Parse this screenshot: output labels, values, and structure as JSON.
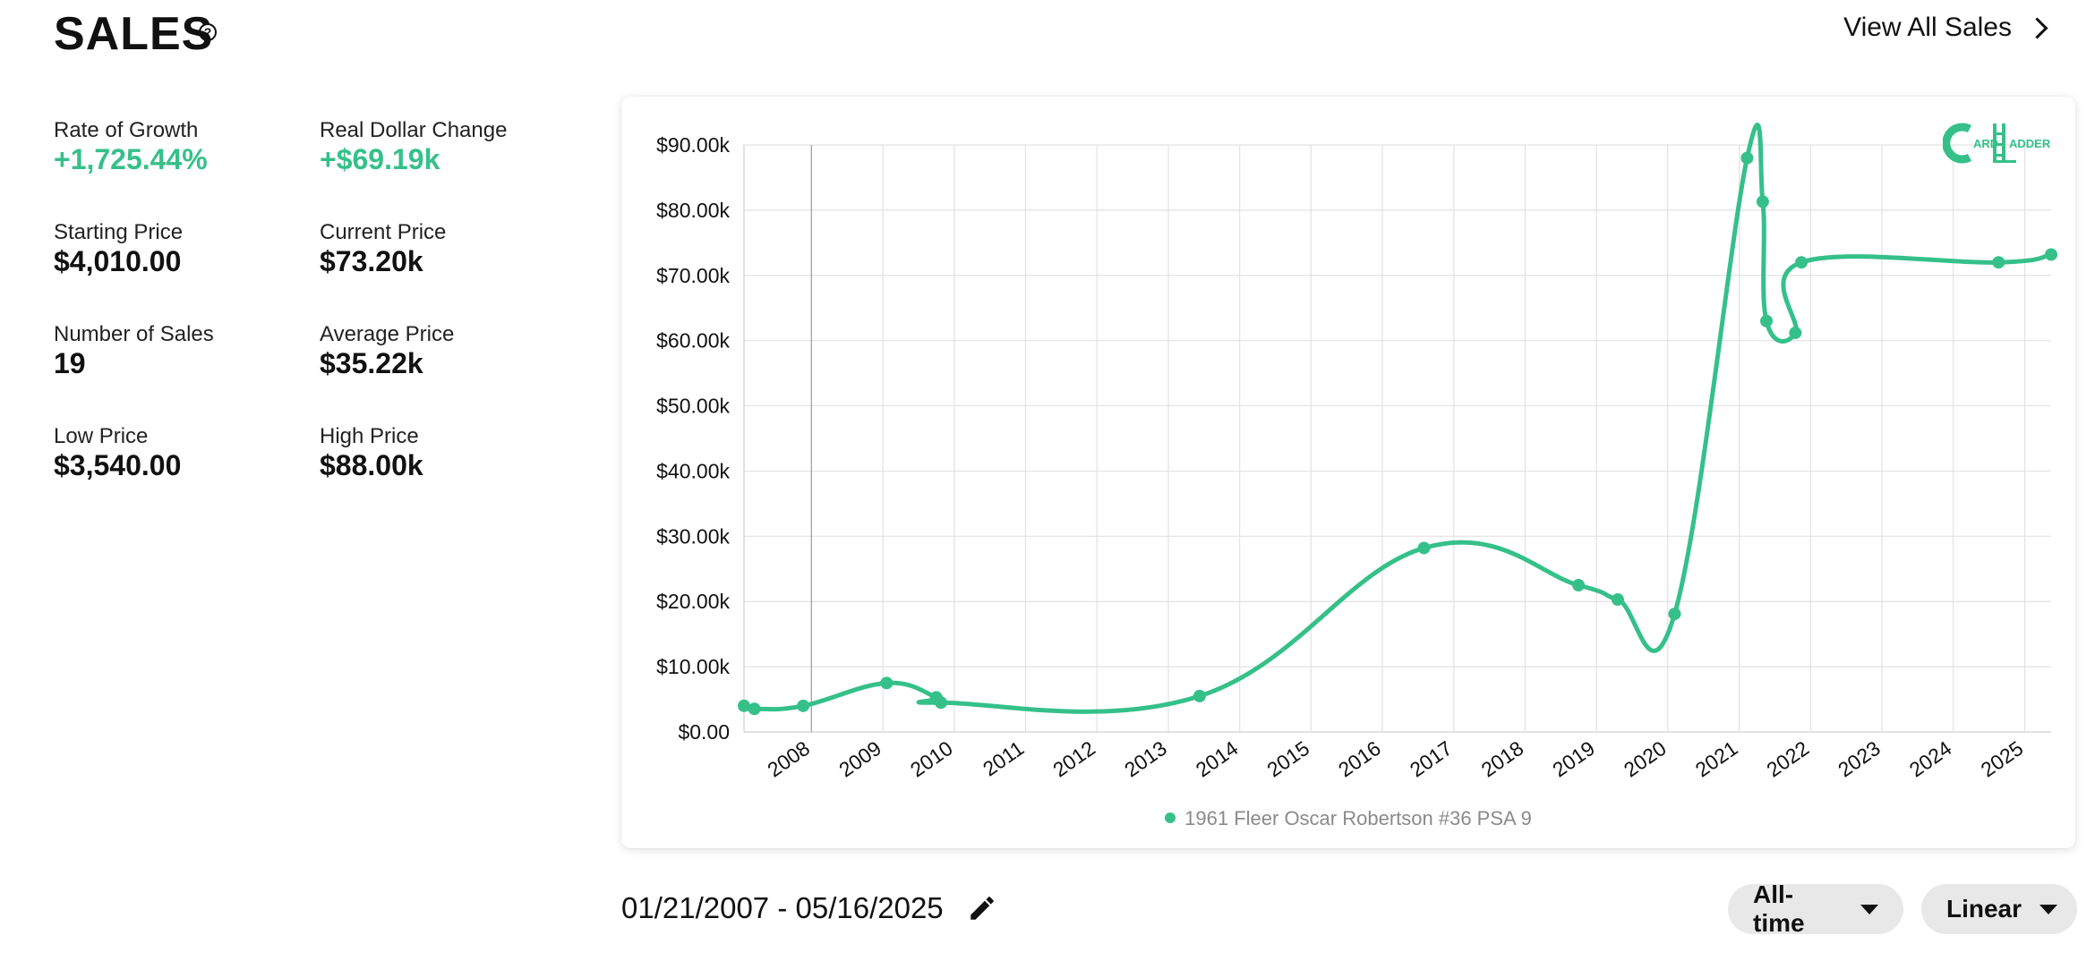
{
  "header": {
    "title": "SALES",
    "help_icon": "question-circle-icon",
    "view_all_label": "View All Sales"
  },
  "stats": [
    {
      "label": "Rate of Growth",
      "value": "+1,725.44%",
      "positive": true
    },
    {
      "label": "Real Dollar Change",
      "value": "+$69.19k",
      "positive": true
    },
    {
      "label": "Starting Price",
      "value": "$4,010.00",
      "positive": false
    },
    {
      "label": "Current Price",
      "value": "$73.20k",
      "positive": false
    },
    {
      "label": "Number of Sales",
      "value": "19",
      "positive": false
    },
    {
      "label": "Average Price",
      "value": "$35.22k",
      "positive": false
    },
    {
      "label": "Low Price",
      "value": "$3,540.00",
      "positive": false
    },
    {
      "label": "High Price",
      "value": "$88.00k",
      "positive": false
    }
  ],
  "logo": {
    "text_c": "C",
    "text_ard": "ARD",
    "text_ladder": "ADDER",
    "icon": "card-ladder-logo-icon"
  },
  "colors": {
    "accent": "#35c08a",
    "grid": "#e2e2e2",
    "pill": "#e8e8e8"
  },
  "chart_data": {
    "type": "line",
    "title": "",
    "xlabel": "",
    "ylabel": "",
    "x_ticks": [
      "2008",
      "2009",
      "2010",
      "2011",
      "2012",
      "2013",
      "2014",
      "2015",
      "2016",
      "2017",
      "2018",
      "2019",
      "2020",
      "2021",
      "2022",
      "2023",
      "2024",
      "2025"
    ],
    "y_ticks": [
      "$0.00",
      "$10.00k",
      "$20.00k",
      "$30.00k",
      "$40.00k",
      "$50.00k",
      "$60.00k",
      "$70.00k",
      "$80.00k",
      "$90.00k"
    ],
    "ylim": [
      0,
      90000
    ],
    "xlim": [
      "2007-01-21",
      "2025-05-16"
    ],
    "grid": true,
    "legend_position": "bottom-center",
    "series": [
      {
        "name": "1961 Fleer Oscar Robertson #36 PSA 9",
        "color": "#35c08a",
        "points": [
          {
            "x": "2007-01-21",
            "y": 4010
          },
          {
            "x": "2007-03-15",
            "y": 3540
          },
          {
            "x": "2007-11-20",
            "y": 4000
          },
          {
            "x": "2009-01-20",
            "y": 7500
          },
          {
            "x": "2009-10-01",
            "y": 5300
          },
          {
            "x": "2009-10-25",
            "y": 4500
          },
          {
            "x": "2013-06-10",
            "y": 5500
          },
          {
            "x": "2016-08-01",
            "y": 28200
          },
          {
            "x": "2018-10-01",
            "y": 22500
          },
          {
            "x": "2019-04-20",
            "y": 20300
          },
          {
            "x": "2020-02-05",
            "y": 18100
          },
          {
            "x": "2021-02-10",
            "y": 88000
          },
          {
            "x": "2021-05-01",
            "y": 81300
          },
          {
            "x": "2021-05-20",
            "y": 63000
          },
          {
            "x": "2021-10-15",
            "y": 61200
          },
          {
            "x": "2021-11-15",
            "y": 72000
          },
          {
            "x": "2024-08-20",
            "y": 72000
          },
          {
            "x": "2025-05-16",
            "y": 73200
          }
        ]
      }
    ]
  },
  "footer": {
    "date_range": "01/21/2007 - 05/16/2025",
    "edit_icon": "pencil-icon",
    "period_label": "All-time",
    "scale_label": "Linear"
  }
}
